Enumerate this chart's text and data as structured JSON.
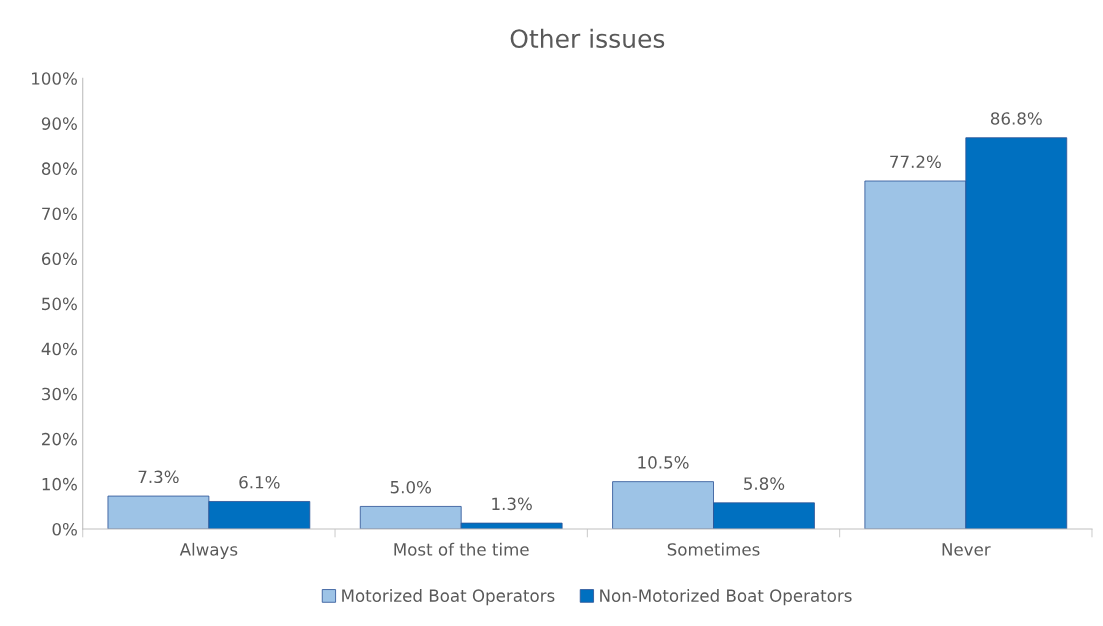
{
  "chart_data": {
    "type": "bar",
    "title": "Other issues",
    "categories": [
      "Always",
      "Most of the time",
      "Sometimes",
      "Never"
    ],
    "series": [
      {
        "name": "Motorized Boat Operators",
        "color": "#9dc3e6",
        "values": [
          7.3,
          5.0,
          10.5,
          77.2
        ],
        "value_labels": [
          "7.3%",
          "5.0%",
          "10.5%",
          "77.2%"
        ]
      },
      {
        "name": "Non-Motorized Boat Operators",
        "color": "#0070c0",
        "values": [
          6.1,
          1.3,
          5.8,
          86.8
        ],
        "value_labels": [
          "6.1%",
          "1.3%",
          "5.8%",
          "86.8%"
        ]
      }
    ],
    "ylim": [
      0,
      100
    ],
    "yticks": [
      {
        "value": 0,
        "label": "0%"
      },
      {
        "value": 10,
        "label": "10%"
      },
      {
        "value": 20,
        "label": "20%"
      },
      {
        "value": 30,
        "label": "30%"
      },
      {
        "value": 40,
        "label": "40%"
      },
      {
        "value": 50,
        "label": "50%"
      },
      {
        "value": 60,
        "label": "60%"
      },
      {
        "value": 70,
        "label": "70%"
      },
      {
        "value": 80,
        "label": "80%"
      },
      {
        "value": 90,
        "label": "90%"
      },
      {
        "value": 100,
        "label": "100%"
      }
    ],
    "grid": false,
    "legend": "bottom"
  }
}
